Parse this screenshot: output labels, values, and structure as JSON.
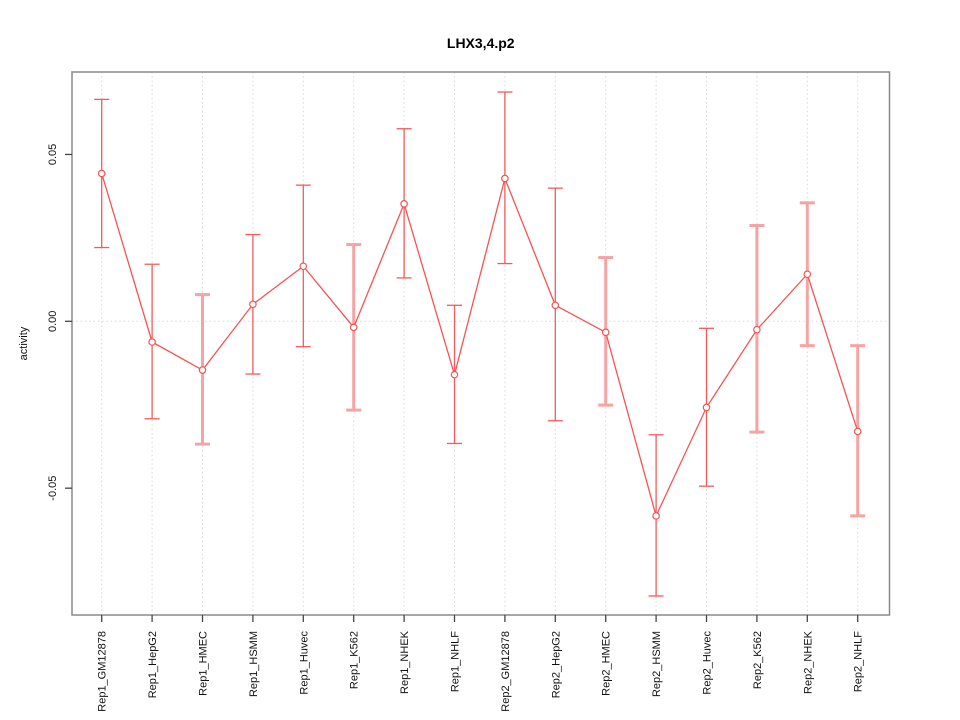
{
  "figure": {
    "title": "LHX3,4.p2"
  },
  "chart_data": {
    "type": "line",
    "title": "LHX3,4.p2",
    "subtitle": "",
    "xlabel": "",
    "ylabel": "activity",
    "legend_position": "none",
    "grid": {
      "vertical": "dotted line at every category",
      "horizontal": "dotted line at y = 0 only"
    },
    "ylim": [
      -0.088,
      0.0747
    ],
    "yticks": [
      -0.05,
      0,
      0.05
    ],
    "ytick_labels": [
      "-0.05",
      "0.00",
      "0.05"
    ],
    "categories": [
      "Rep1_GM12878",
      "Rep1_HepG2",
      "Rep1_HMEC",
      "Rep1_HSMM",
      "Rep1_Huvec",
      "Rep1_K562",
      "Rep1_NHEK",
      "Rep1_NHLF",
      "Rep2_GM12878",
      "Rep2_HepG2",
      "Rep2_HMEC",
      "Rep2_HSMM",
      "Rep2_Huvec",
      "Rep2_K562",
      "Rep2_NHEK",
      "Rep2_NHLF"
    ],
    "series": [
      {
        "name": "activity",
        "marker": "open-circle",
        "values": [
          0.0443,
          -0.0062,
          -0.0146,
          0.0051,
          0.0165,
          -0.0018,
          0.0352,
          -0.016,
          0.0428,
          0.0048,
          -0.0033,
          -0.0583,
          -0.0258,
          -0.0025,
          0.0141,
          -0.033
        ],
        "ci_high": [
          0.0665,
          0.0171,
          0.008,
          0.026,
          0.0408,
          0.023,
          0.0577,
          0.0048,
          0.0687,
          0.0399,
          0.0191,
          -0.034,
          -0.0021,
          0.0287,
          0.0355,
          -0.0073
        ],
        "ci_low": [
          0.0221,
          -0.0292,
          -0.0368,
          -0.0158,
          -0.0076,
          -0.0266,
          0.013,
          -0.0366,
          0.0173,
          -0.0298,
          -0.0251,
          -0.0823,
          -0.0494,
          -0.0332,
          -0.0073,
          -0.0583
        ],
        "thick_error_bar": [
          false,
          false,
          true,
          false,
          false,
          true,
          false,
          false,
          false,
          false,
          true,
          false,
          false,
          true,
          true,
          true
        ]
      }
    ],
    "colors": {
      "line": "#f45454",
      "point": "#f45454",
      "error_bar_thin": "#f25c5c",
      "error_bar_thick": "#f6a3a3",
      "grid": "#d9d9d9",
      "box": "#8a8a8a",
      "tick": "#474747",
      "text": "#111111",
      "title": "#000000",
      "background": "#ffffff"
    }
  }
}
